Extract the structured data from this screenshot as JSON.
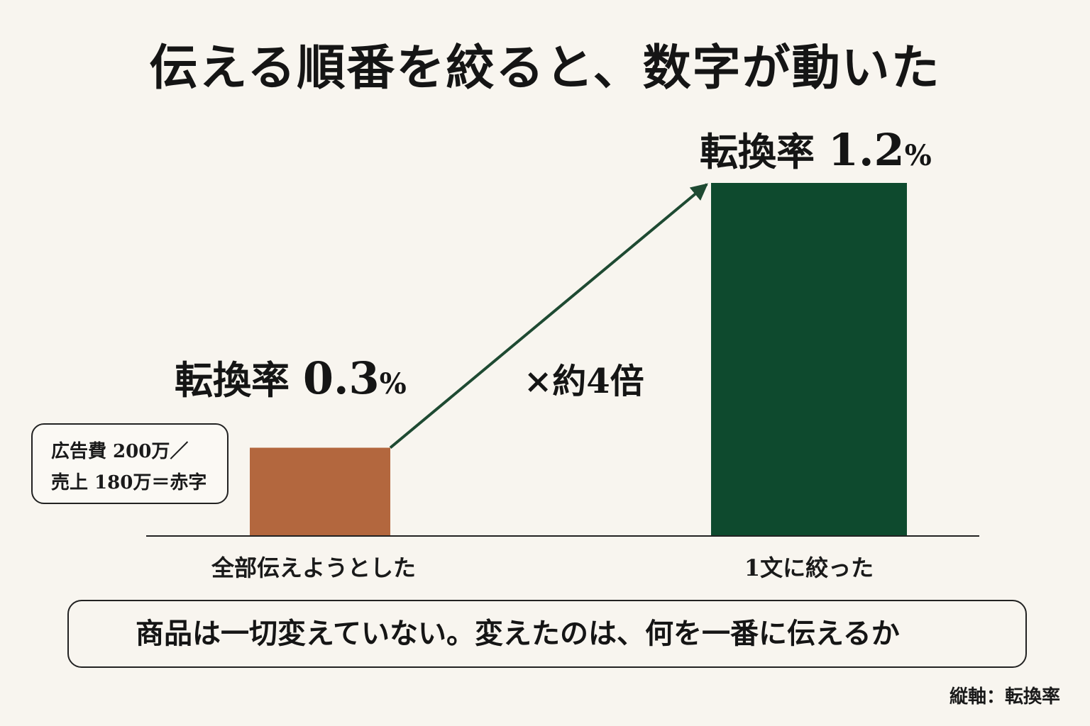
{
  "title": "伝える順番を絞ると、数字が動いた",
  "chart_data": {
    "type": "bar",
    "title": "伝える順番を絞ると、数字が動いた",
    "categories": [
      "全部伝えようとした",
      "1文に絞った"
    ],
    "values": [
      0.3,
      1.2
    ],
    "unit": "%",
    "ylabel": "縦軸：転換率",
    "ylim": [
      0,
      1.2
    ],
    "colors": [
      "#b3673e",
      "#0e4a2e"
    ],
    "bar_labels": [
      {
        "prefix": "転換率",
        "num": "0.3",
        "unit": "%"
      },
      {
        "prefix": "転換率",
        "num": "1.2",
        "unit": "%"
      }
    ],
    "annotations": {
      "arrow_color": "#1e4a32",
      "multiplier": "×約4倍"
    }
  },
  "note": {
    "line1": "広告費 200万／",
    "line2": "売上 180万＝赤字"
  },
  "message": "商品は一切変えていない。変えたのは、何を一番に伝えるか",
  "axis_note": "縦軸：転換率"
}
